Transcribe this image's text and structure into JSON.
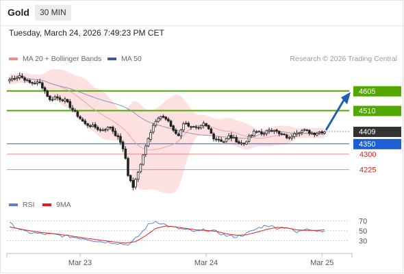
{
  "header": {
    "title": "Gold",
    "timeframe": "30 MIN"
  },
  "date_label": "Tuesday, March 24, 2026 7:49:23 PM CET",
  "legend": {
    "ma20": {
      "label": "MA 20 + Bollinger Bands",
      "color": "#f28b8b"
    },
    "ma50": {
      "label": "MA 50",
      "color": "#3c5a99"
    },
    "credit": "Research © 2026 Trading Central"
  },
  "rsi_legend": {
    "rsi": {
      "label": "RSI",
      "color": "#5b7fd6"
    },
    "ma9": {
      "label": "9MA",
      "color": "#e02020"
    }
  },
  "chart_data": [
    {
      "type": "candlestick",
      "ylim": [
        4085,
        4720
      ],
      "xlabels": [
        "Mar 23",
        "Mar 24",
        "Mar 25"
      ],
      "xlabel_index": [
        28,
        78,
        124
      ],
      "n_bars": 126,
      "close_anchors": [
        [
          0,
          4660
        ],
        [
          4,
          4680
        ],
        [
          8,
          4645
        ],
        [
          12,
          4645
        ],
        [
          14,
          4605
        ],
        [
          16,
          4560
        ],
        [
          18,
          4575
        ],
        [
          22,
          4560
        ],
        [
          26,
          4500
        ],
        [
          30,
          4445
        ],
        [
          34,
          4430
        ],
        [
          36,
          4415
        ],
        [
          40,
          4430
        ],
        [
          44,
          4360
        ],
        [
          46,
          4280
        ],
        [
          47,
          4200
        ],
        [
          49,
          4140
        ],
        [
          51,
          4210
        ],
        [
          53,
          4300
        ],
        [
          55,
          4380
        ],
        [
          57,
          4440
        ],
        [
          59,
          4470
        ],
        [
          61,
          4480
        ],
        [
          63,
          4460
        ],
        [
          65,
          4410
        ],
        [
          67,
          4390
        ],
        [
          69,
          4450
        ],
        [
          71,
          4440
        ],
        [
          73,
          4430
        ],
        [
          75,
          4420
        ],
        [
          77,
          4445
        ],
        [
          79,
          4420
        ],
        [
          81,
          4380
        ],
        [
          83,
          4370
        ],
        [
          85,
          4360
        ],
        [
          87,
          4385
        ],
        [
          89,
          4375
        ],
        [
          91,
          4355
        ],
        [
          93,
          4350
        ],
        [
          95,
          4380
        ],
        [
          97,
          4405
        ],
        [
          99,
          4410
        ],
        [
          101,
          4395
        ],
        [
          103,
          4420
        ],
        [
          105,
          4420
        ],
        [
          107,
          4395
        ],
        [
          109,
          4390
        ],
        [
          111,
          4375
        ],
        [
          113,
          4405
        ],
        [
          115,
          4410
        ],
        [
          117,
          4415
        ],
        [
          119,
          4405
        ],
        [
          121,
          4400
        ],
        [
          123,
          4408
        ],
        [
          125,
          4409
        ]
      ],
      "levels": [
        {
          "value": 4605,
          "label": "4605",
          "type": "resistance",
          "color": "#52a800"
        },
        {
          "value": 4510,
          "label": "4510",
          "type": "resistance",
          "color": "#52a800"
        },
        {
          "value": 4409,
          "label": "4409",
          "type": "last",
          "color": "#333333"
        },
        {
          "value": 4350,
          "label": "4350",
          "type": "pivot",
          "color": "#1f5fd6"
        },
        {
          "value": 4300,
          "label": "4300",
          "type": "support",
          "color": "#d02020"
        },
        {
          "value": 4225,
          "label": "4225",
          "type": "support",
          "color": "#d02020"
        }
      ],
      "target_arrow": {
        "from_bar": 125,
        "from_value": 4409,
        "to_value": 4580,
        "color": "#1f5fb0"
      }
    },
    {
      "type": "line",
      "ylim": [
        15,
        85
      ],
      "yticks": [
        30,
        50,
        70
      ],
      "series": [
        {
          "key": "rsi",
          "anchors": [
            [
              0,
              65
            ],
            [
              6,
              48
            ],
            [
              12,
              44
            ],
            [
              18,
              42
            ],
            [
              24,
              38
            ],
            [
              30,
              34
            ],
            [
              36,
              28
            ],
            [
              42,
              26
            ],
            [
              46,
              22
            ],
            [
              48,
              24
            ],
            [
              52,
              44
            ],
            [
              55,
              62
            ],
            [
              58,
              70
            ],
            [
              61,
              64
            ],
            [
              64,
              58
            ],
            [
              67,
              55
            ],
            [
              70,
              52
            ],
            [
              74,
              48
            ],
            [
              78,
              52
            ],
            [
              82,
              48
            ],
            [
              86,
              40
            ],
            [
              90,
              38
            ],
            [
              94,
              44
            ],
            [
              98,
              54
            ],
            [
              102,
              62
            ],
            [
              106,
              56
            ],
            [
              110,
              58
            ],
            [
              114,
              46
            ],
            [
              118,
              56
            ],
            [
              122,
              50
            ],
            [
              125,
              51
            ]
          ]
        },
        {
          "key": "ma9",
          "anchors": [
            [
              0,
              58
            ],
            [
              6,
              52
            ],
            [
              12,
              47
            ],
            [
              18,
              44
            ],
            [
              24,
              40
            ],
            [
              30,
              35
            ],
            [
              36,
              31
            ],
            [
              42,
              27
            ],
            [
              46,
              25
            ],
            [
              50,
              28
            ],
            [
              54,
              40
            ],
            [
              58,
              55
            ],
            [
              62,
              60
            ],
            [
              66,
              58
            ],
            [
              70,
              55
            ],
            [
              74,
              52
            ],
            [
              78,
              51
            ],
            [
              82,
              49
            ],
            [
              86,
              44
            ],
            [
              90,
              41
            ],
            [
              94,
              42
            ],
            [
              98,
              47
            ],
            [
              102,
              53
            ],
            [
              106,
              57
            ],
            [
              110,
              56
            ],
            [
              114,
              52
            ],
            [
              118,
              51
            ],
            [
              122,
              51
            ],
            [
              125,
              52
            ]
          ]
        }
      ]
    }
  ]
}
